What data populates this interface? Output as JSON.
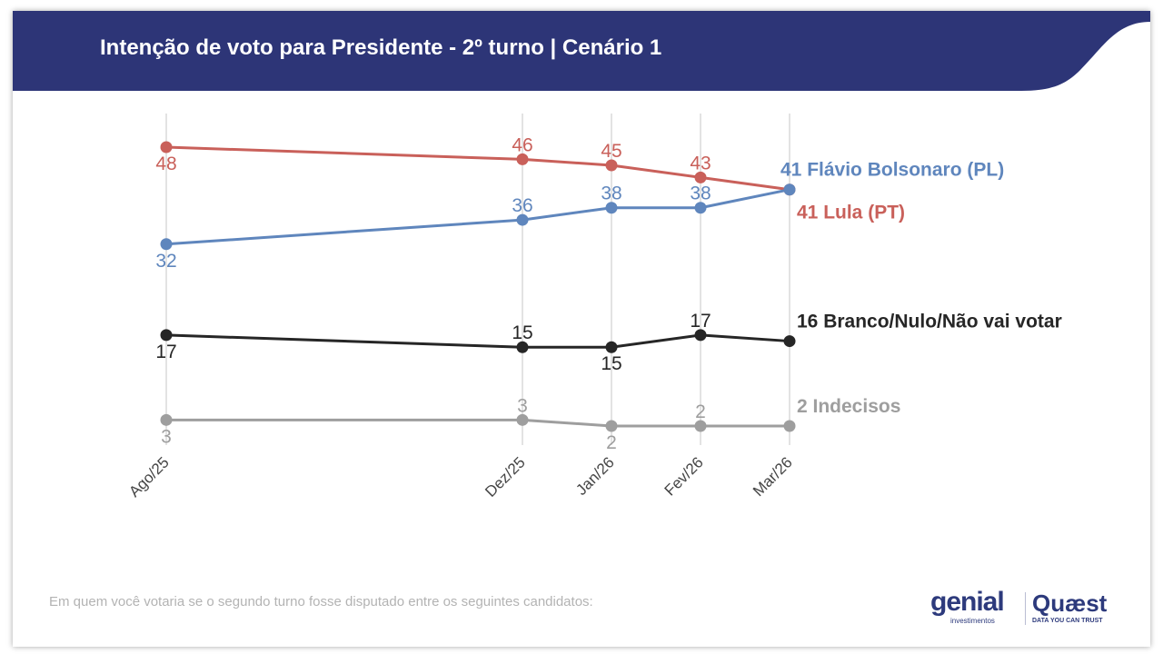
{
  "header": {
    "title": "Intenção de voto para Presidente - 2º turno | Cenário 1"
  },
  "colors": {
    "header_bg": "#2d3577",
    "lula": "#c9605a",
    "flavio": "#5f86bd",
    "branco": "#262626",
    "indecisos": "#9e9e9e"
  },
  "chart_data": {
    "type": "line",
    "x": [
      "Ago/25",
      "Dez/25",
      "Jan/26",
      "Fev/26",
      "Mar/26"
    ],
    "x_months": [
      0,
      4,
      5,
      6,
      7
    ],
    "ylim": [
      0,
      50
    ],
    "grid": "vertical",
    "series": [
      {
        "key": "lula",
        "values": [
          48,
          46,
          45,
          43,
          41
        ],
        "end_label": "41 Lula (PT)",
        "color": "#c9605a",
        "label_pos": [
          "below",
          "above",
          "above",
          "above",
          "none"
        ]
      },
      {
        "key": "flavio",
        "values": [
          32,
          36,
          38,
          38,
          41
        ],
        "end_label": "41 Flávio Bolsonaro (PL)",
        "color": "#5f86bd",
        "label_pos": [
          "below",
          "above",
          "above",
          "above",
          "none"
        ]
      },
      {
        "key": "branco",
        "values": [
          17,
          15,
          15,
          17,
          16
        ],
        "end_label": "16 Branco/Nulo/Não vai votar",
        "color": "#262626",
        "label_pos": [
          "below",
          "above",
          "below",
          "above",
          "none"
        ]
      },
      {
        "key": "indecisos",
        "values": [
          3,
          3,
          2,
          2,
          2
        ],
        "end_label": "2 Indecisos",
        "color": "#9e9e9e",
        "label_pos": [
          "below",
          "above",
          "below",
          "above",
          "none"
        ]
      }
    ]
  },
  "footer": {
    "note": "Em quem você votaria se o segundo turno fosse disputado entre os seguintes candidatos:",
    "logo_genial": "genial",
    "logo_genial_sub": "investimentos",
    "logo_quaest": "Quæst",
    "logo_quaest_sub": "DATA YOU CAN TRUST"
  }
}
